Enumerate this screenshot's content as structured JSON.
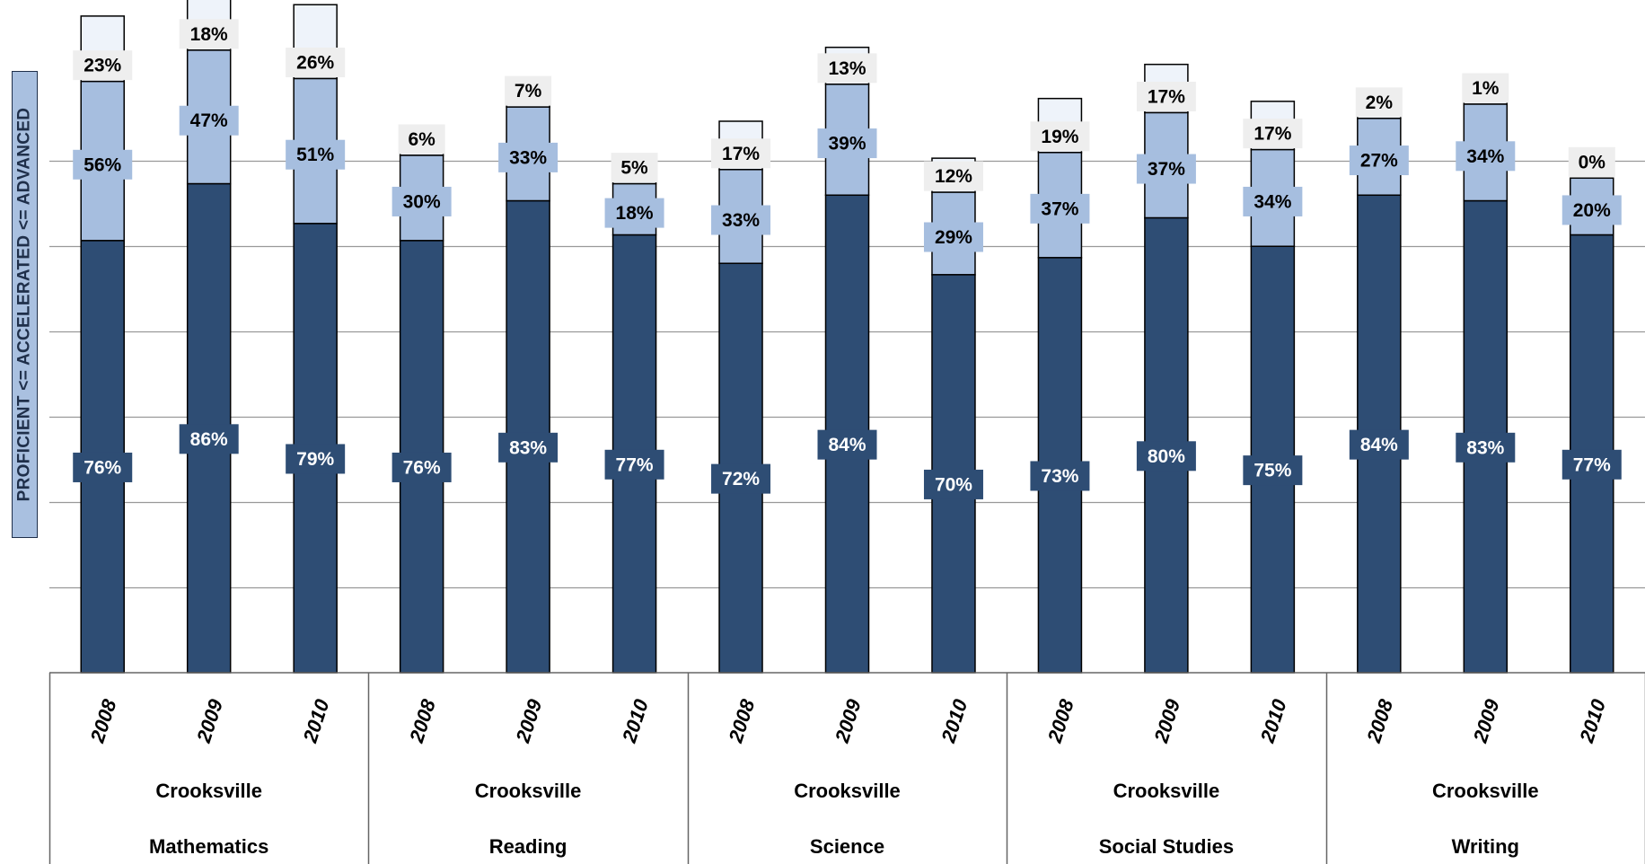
{
  "chart_data": {
    "type": "bar",
    "subtype": "stacked/overlapping cumulative bars",
    "ylabel": "PROFICIENT <= ACCELERATED <= ADVANCED",
    "ylim": [
      0,
      100
    ],
    "grid": true,
    "colors": {
      "proficient": "#2e4d74",
      "accelerated": "#a6bedf",
      "advanced": "#eef3fa",
      "outline": "#000000",
      "grid": "#999999"
    },
    "groups": [
      {
        "line1": "Crooksville",
        "line2": "Mathematics",
        "years": [
          "2008",
          "2009",
          "2010"
        ]
      },
      {
        "line1": "Crooksville",
        "line2": "Reading",
        "years": [
          "2008",
          "2009",
          "2010"
        ]
      },
      {
        "line1": "Crooksville",
        "line2": "Science",
        "years": [
          "2008",
          "2009",
          "2010"
        ]
      },
      {
        "line1": "Crooksville",
        "line2": "Social Studies",
        "years": [
          "2008",
          "2009",
          "2010"
        ]
      },
      {
        "line1": "Crooksville",
        "line2": "Writing",
        "years": [
          "2008",
          "2009",
          "2010"
        ]
      }
    ],
    "categories": [
      "Mathematics 2008",
      "Mathematics 2009",
      "Mathematics 2010",
      "Reading 2008",
      "Reading 2009",
      "Reading 2010",
      "Science 2008",
      "Science 2009",
      "Science 2010",
      "Social Studies 2008",
      "Social Studies 2009",
      "Social Studies 2010",
      "Writing 2008",
      "Writing 2009",
      "Writing 2010"
    ],
    "series": [
      {
        "key": "proficient",
        "values": [
          76,
          86,
          79,
          76,
          83,
          77,
          72,
          84,
          70,
          73,
          80,
          75,
          84,
          83,
          77
        ],
        "labels": [
          "76%",
          "86%",
          "79%",
          "76%",
          "83%",
          "77%",
          "72%",
          "84%",
          "70%",
          "73%",
          "80%",
          "75%",
          "84%",
          "83%",
          "77%"
        ]
      },
      {
        "key": "accelerated",
        "values": [
          56,
          47,
          51,
          30,
          33,
          18,
          33,
          39,
          29,
          37,
          37,
          34,
          27,
          34,
          20
        ],
        "labels": [
          "56%",
          "47%",
          "51%",
          "30%",
          "33%",
          "18%",
          "33%",
          "39%",
          "29%",
          "37%",
          "37%",
          "34%",
          "27%",
          "34%",
          "20%"
        ]
      },
      {
        "key": "advanced",
        "values": [
          23,
          18,
          26,
          6,
          7,
          5,
          17,
          13,
          12,
          19,
          17,
          17,
          2,
          1,
          0
        ],
        "labels": [
          "23%",
          "18%",
          "26%",
          "6%",
          "7%",
          "5%",
          "17%",
          "13%",
          "12%",
          "19%",
          "17%",
          "17%",
          "2%",
          "1%",
          "0%"
        ]
      }
    ]
  }
}
